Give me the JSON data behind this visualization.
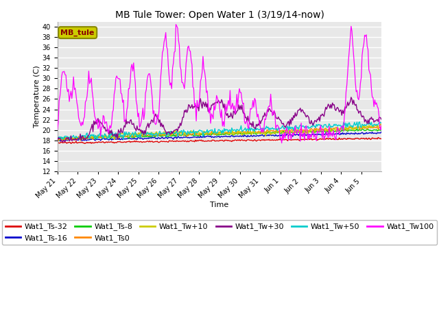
{
  "title": "MB Tule Tower: Open Water 1 (3/19/14-now)",
  "xlabel": "Time",
  "ylabel": "Temperature (C)",
  "ylim": [
    12,
    41
  ],
  "yticks": [
    12,
    14,
    16,
    18,
    20,
    22,
    24,
    26,
    28,
    30,
    32,
    34,
    36,
    38,
    40
  ],
  "fig_facecolor": "#ffffff",
  "ax_facecolor": "#e8e8e8",
  "grid_color": "#ffffff",
  "series_colors": {
    "Wat1_Ts-32": "#dd0000",
    "Wat1_Ts-16": "#0000cc",
    "Wat1_Ts-8": "#00cc00",
    "Wat1_Ts0": "#ff8800",
    "Wat1_Tw+10": "#cccc00",
    "Wat1_Tw+30": "#880088",
    "Wat1_Tw+50": "#00cccc",
    "Wat1_Tw100": "#ff00ff"
  },
  "x_tick_labels": [
    "May 21",
    "May 22",
    "May 23",
    "May 24",
    "May 25",
    "May 26",
    "May 27",
    "May 28",
    "May 29",
    "May 30",
    "May 31",
    "Jun 1",
    "Jun 2",
    "Jun 3",
    "Jun 4",
    "Jun 5"
  ],
  "title_fontsize": 10,
  "label_fontsize": 8,
  "tick_fontsize": 7,
  "legend_fontsize": 8,
  "annotation_text": "MB_tule",
  "annotation_color": "#880000",
  "annotation_bg": "#cccc00",
  "annotation_edge": "#888800"
}
